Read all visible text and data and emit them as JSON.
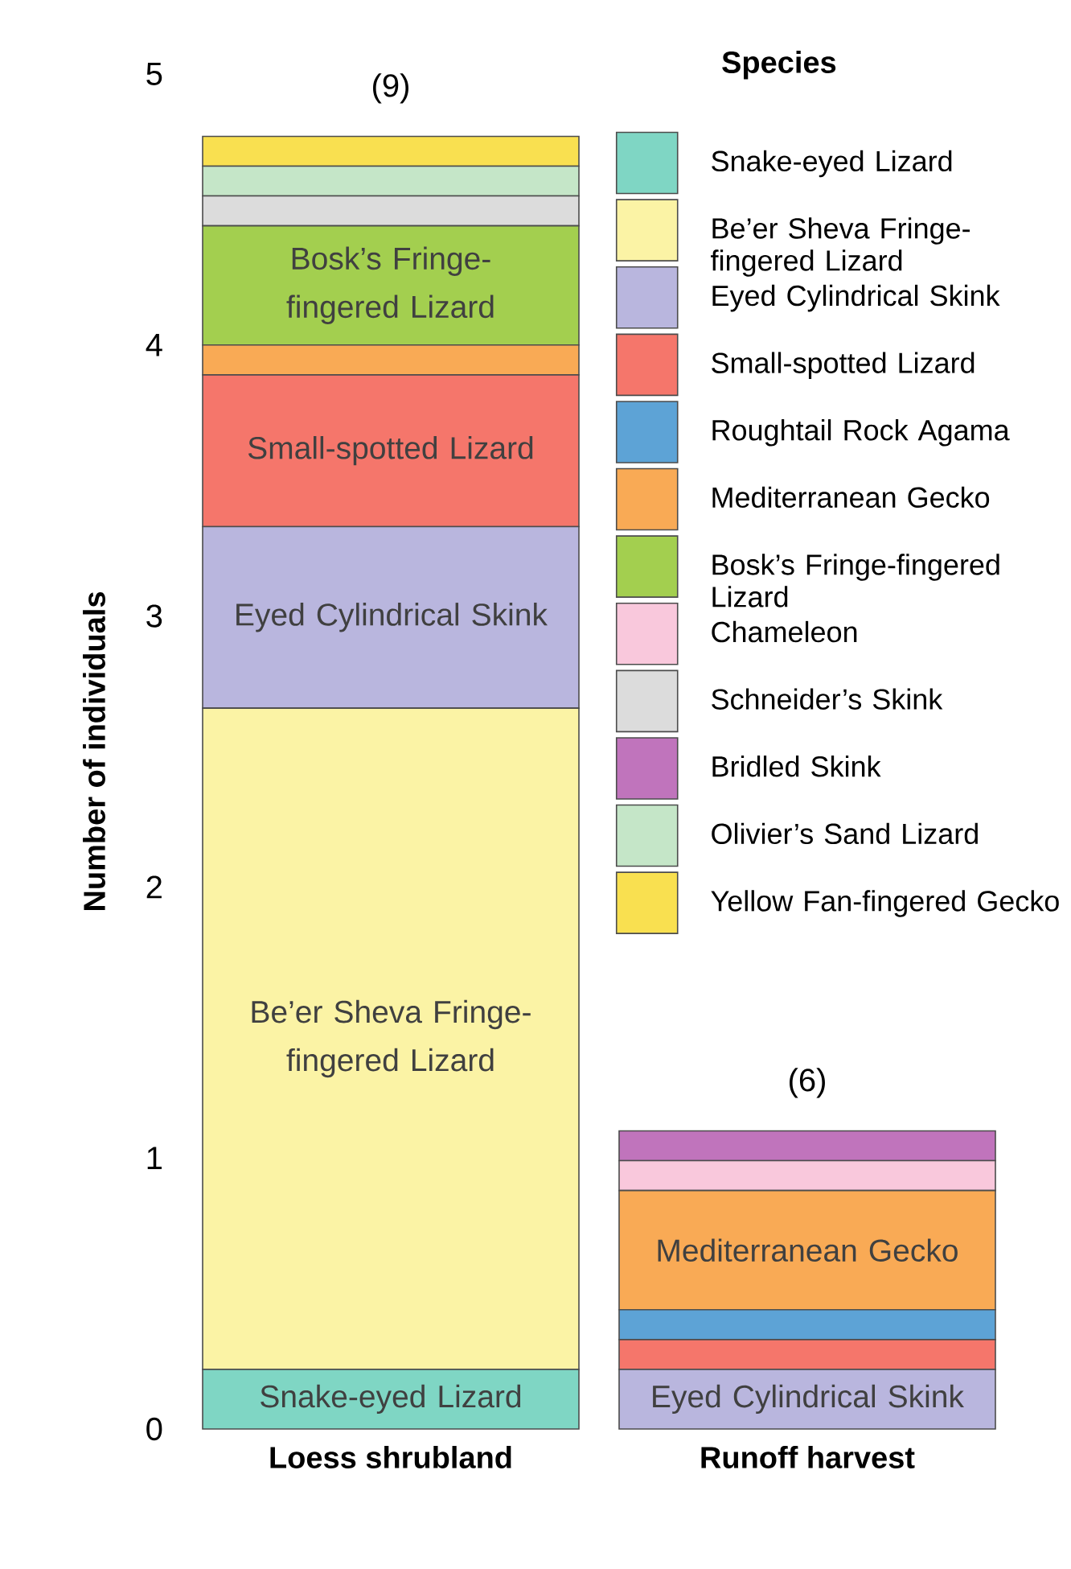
{
  "chart_data": {
    "type": "bar",
    "stacked": true,
    "ylabel": "Number of individuals",
    "legend_title": "Species",
    "legend": "top right",
    "categories": [
      "Loess shrubland",
      "Runoff harvest"
    ],
    "ylim": [
      0,
      5
    ],
    "yticks": [
      0,
      1,
      2,
      3,
      4,
      5
    ],
    "totals": [
      "(9)",
      "(6)"
    ],
    "series": [
      {
        "name": "Snake-eyed Lizard",
        "color": "#7fd6c4",
        "values": [
          0.22,
          0
        ]
      },
      {
        "name": "Be’er Sheva Fringe-fingered Lizard",
        "color": "#fbf3a5",
        "values": [
          2.44,
          0
        ]
      },
      {
        "name": "Eyed Cylindrical Skink",
        "color": "#b9b6de",
        "values": [
          0.67,
          0.22
        ]
      },
      {
        "name": "Small-spotted Lizard",
        "color": "#f5766b",
        "values": [
          0.56,
          0.11
        ]
      },
      {
        "name": "Roughtail Rock Agama",
        "color": "#5da3d6",
        "values": [
          0,
          0.11
        ]
      },
      {
        "name": "Mediterranean Gecko",
        "color": "#f9aa55",
        "values": [
          0.11,
          0.44
        ]
      },
      {
        "name": "Bosk’s Fringe-fingered Lizard",
        "color": "#a3cf4f",
        "values": [
          0.44,
          0
        ]
      },
      {
        "name": "Chameleon",
        "color": "#f9c8dc",
        "values": [
          0,
          0.11
        ]
      },
      {
        "name": "Schneider’s Skink",
        "color": "#dcdcdc",
        "values": [
          0.11,
          0
        ]
      },
      {
        "name": "Bridled Skink",
        "color": "#c074bc",
        "values": [
          0,
          0.11
        ]
      },
      {
        "name": "Olivier’s Sand Lizard",
        "color": "#c5e6c8",
        "values": [
          0.11,
          0
        ]
      },
      {
        "name": "Yellow Fan-fingered Gecko",
        "color": "#f9e050",
        "values": [
          0.11,
          0
        ]
      }
    ]
  }
}
